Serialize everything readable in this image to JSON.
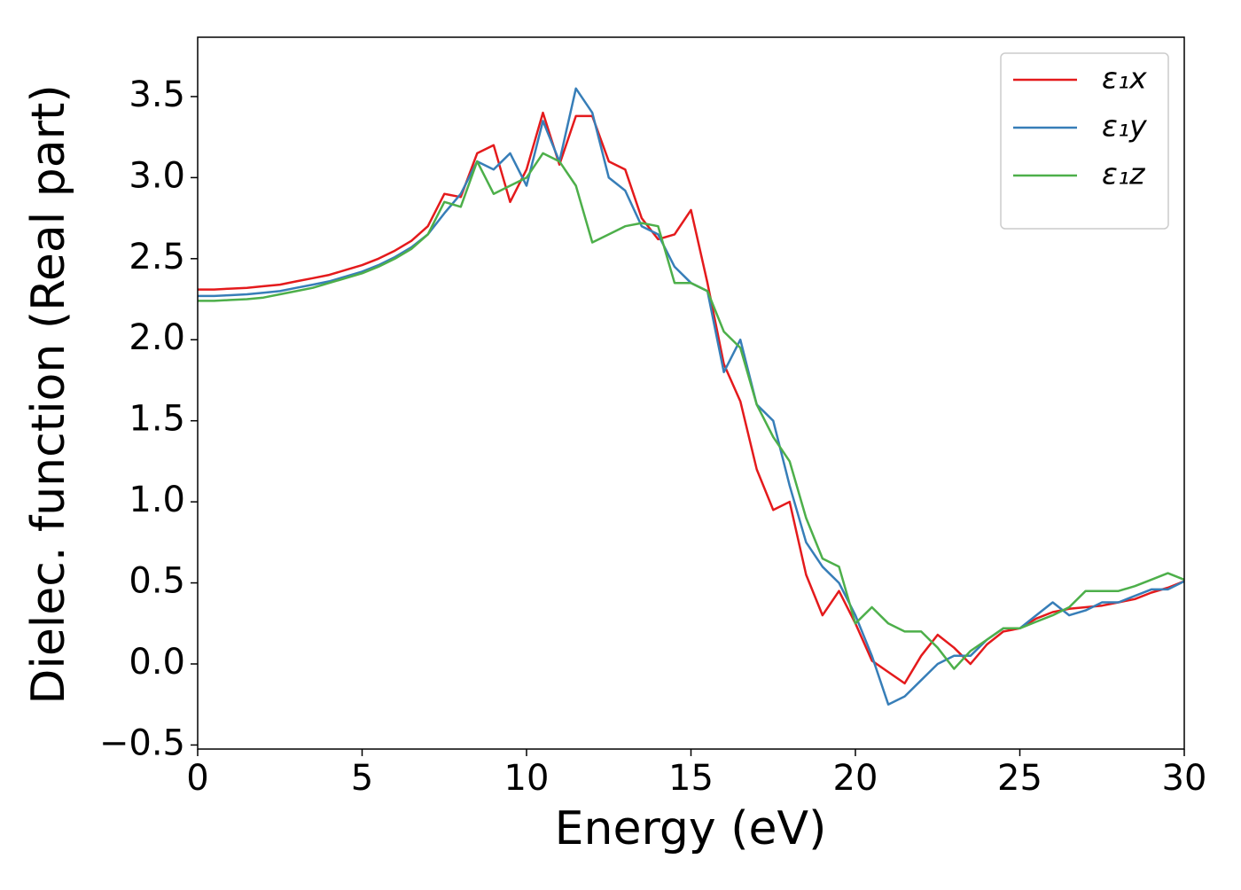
{
  "chart_data": {
    "type": "line",
    "xlabel": "Energy (eV)",
    "ylabel": "Dielec. function (Real part)",
    "x": [
      0,
      0.5,
      1,
      1.5,
      2,
      2.5,
      3,
      3.5,
      4,
      4.5,
      5,
      5.5,
      6,
      6.5,
      7,
      7.5,
      8,
      8.5,
      9,
      9.5,
      10,
      10.5,
      11,
      11.5,
      12,
      12.5,
      13,
      13.5,
      14,
      14.5,
      15,
      15.5,
      16,
      16.5,
      17,
      17.5,
      18,
      18.5,
      19,
      19.5,
      20,
      20.5,
      21,
      21.5,
      22,
      22.5,
      23,
      23.5,
      24,
      24.5,
      25,
      25.5,
      26,
      26.5,
      27,
      27.5,
      28,
      28.5,
      29,
      29.5,
      30
    ],
    "series": [
      {
        "name": "ε₁x",
        "color": "#e41a1c",
        "values": [
          2.31,
          2.31,
          2.315,
          2.32,
          2.33,
          2.34,
          2.36,
          2.38,
          2.4,
          2.43,
          2.46,
          2.5,
          2.55,
          2.61,
          2.7,
          2.9,
          2.88,
          3.15,
          3.2,
          2.85,
          3.05,
          3.4,
          3.08,
          3.38,
          3.38,
          3.1,
          3.05,
          2.75,
          2.62,
          2.65,
          2.8,
          2.35,
          1.85,
          1.62,
          1.2,
          0.95,
          1.0,
          0.55,
          0.3,
          0.45,
          0.25,
          0.02,
          -0.05,
          -0.12,
          0.05,
          0.18,
          0.1,
          0.0,
          0.12,
          0.2,
          0.22,
          0.28,
          0.32,
          0.34,
          0.35,
          0.36,
          0.38,
          0.4,
          0.44,
          0.47,
          0.51
        ]
      },
      {
        "name": "ε₁y",
        "color": "#377eb8",
        "values": [
          2.27,
          2.27,
          2.275,
          2.28,
          2.29,
          2.3,
          2.32,
          2.34,
          2.36,
          2.39,
          2.42,
          2.46,
          2.51,
          2.57,
          2.65,
          2.78,
          2.9,
          3.1,
          3.05,
          3.15,
          2.95,
          3.35,
          3.1,
          3.55,
          3.4,
          3.0,
          2.92,
          2.7,
          2.65,
          2.45,
          2.35,
          2.3,
          1.8,
          2.0,
          1.6,
          1.5,
          1.1,
          0.75,
          0.6,
          0.5,
          0.3,
          0.05,
          -0.25,
          -0.2,
          -0.1,
          0.0,
          0.05,
          0.05,
          0.15,
          0.22,
          0.22,
          0.3,
          0.38,
          0.3,
          0.33,
          0.38,
          0.38,
          0.42,
          0.46,
          0.46,
          0.51
        ]
      },
      {
        "name": "ε₁z",
        "color": "#4daf4a",
        "values": [
          2.24,
          2.24,
          2.245,
          2.25,
          2.26,
          2.28,
          2.3,
          2.32,
          2.35,
          2.38,
          2.41,
          2.45,
          2.5,
          2.56,
          2.65,
          2.85,
          2.82,
          3.1,
          2.9,
          2.95,
          3.0,
          3.15,
          3.1,
          2.95,
          2.6,
          2.65,
          2.7,
          2.72,
          2.7,
          2.35,
          2.35,
          2.3,
          2.05,
          1.95,
          1.6,
          1.4,
          1.25,
          0.9,
          0.65,
          0.6,
          0.25,
          0.35,
          0.25,
          0.2,
          0.2,
          0.1,
          -0.03,
          0.08,
          0.15,
          0.22,
          0.22,
          0.26,
          0.3,
          0.35,
          0.45,
          0.45,
          0.45,
          0.48,
          0.52,
          0.56,
          0.52
        ]
      }
    ],
    "xlim": [
      0,
      30
    ],
    "xticks": [
      0,
      5,
      10,
      15,
      20,
      25,
      30
    ],
    "ylim": [
      -0.525,
      3.866
    ],
    "yticks": [
      {
        "value": -0.5,
        "label": "−0.5"
      },
      {
        "value": 0,
        "label": "0.0"
      },
      0.5,
      {
        "value": 1,
        "label": "1.0"
      },
      1.5,
      {
        "value": 2,
        "label": "2.0"
      },
      2.5,
      {
        "value": 3,
        "label": "3.0"
      },
      3.5
    ],
    "grid": false,
    "legend": "upper right"
  }
}
